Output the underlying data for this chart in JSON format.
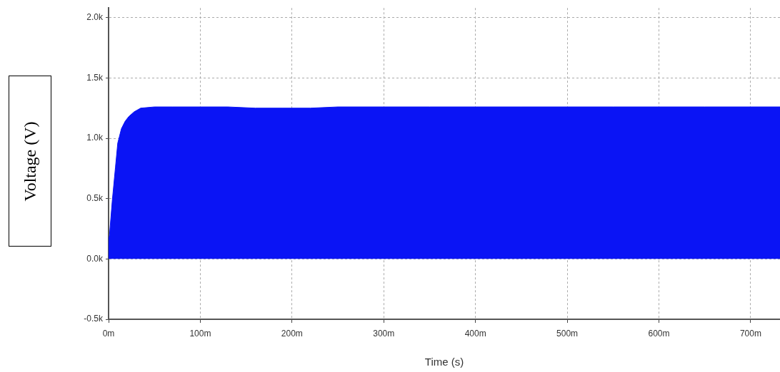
{
  "chart_data": {
    "type": "area",
    "xlabel": "Time (s)",
    "ylabel": "Voltage (V)",
    "x": [
      0,
      1,
      4,
      7.5,
      10,
      14,
      18,
      22,
      28,
      35,
      50,
      70,
      100,
      130,
      160,
      190,
      220,
      250,
      300,
      350,
      400,
      450,
      500,
      550,
      600,
      650,
      700,
      732
    ],
    "series": [
      {
        "color": "#0a14f5",
        "values": [
          150,
          200,
          480,
          760,
          960,
          1080,
          1140,
          1180,
          1220,
          1250,
          1260,
          1260,
          1260,
          1260,
          1250,
          1250,
          1250,
          1260,
          1260,
          1260,
          1260,
          1260,
          1260,
          1260,
          1260,
          1260,
          1260,
          1260
        ]
      }
    ],
    "xlim": [
      0,
      732
    ],
    "ylim": [
      -500,
      2080
    ],
    "xticks": [
      {
        "value": 0,
        "label": "0m"
      },
      {
        "value": 100,
        "label": "100m"
      },
      {
        "value": 200,
        "label": "200m"
      },
      {
        "value": 300,
        "label": "300m"
      },
      {
        "value": 400,
        "label": "400m"
      },
      {
        "value": 500,
        "label": "500m"
      },
      {
        "value": 600,
        "label": "600m"
      },
      {
        "value": 700,
        "label": "700m"
      }
    ],
    "yticks": [
      {
        "value": -500,
        "label": "-0.5k"
      },
      {
        "value": 0,
        "label": "0.0k"
      },
      {
        "value": 500,
        "label": "0.5k"
      },
      {
        "value": 1000,
        "label": "1.0k"
      },
      {
        "value": 1500,
        "label": "1.5k"
      },
      {
        "value": 2000,
        "label": "2.0k"
      }
    ],
    "grid": true,
    "legend": false
  }
}
